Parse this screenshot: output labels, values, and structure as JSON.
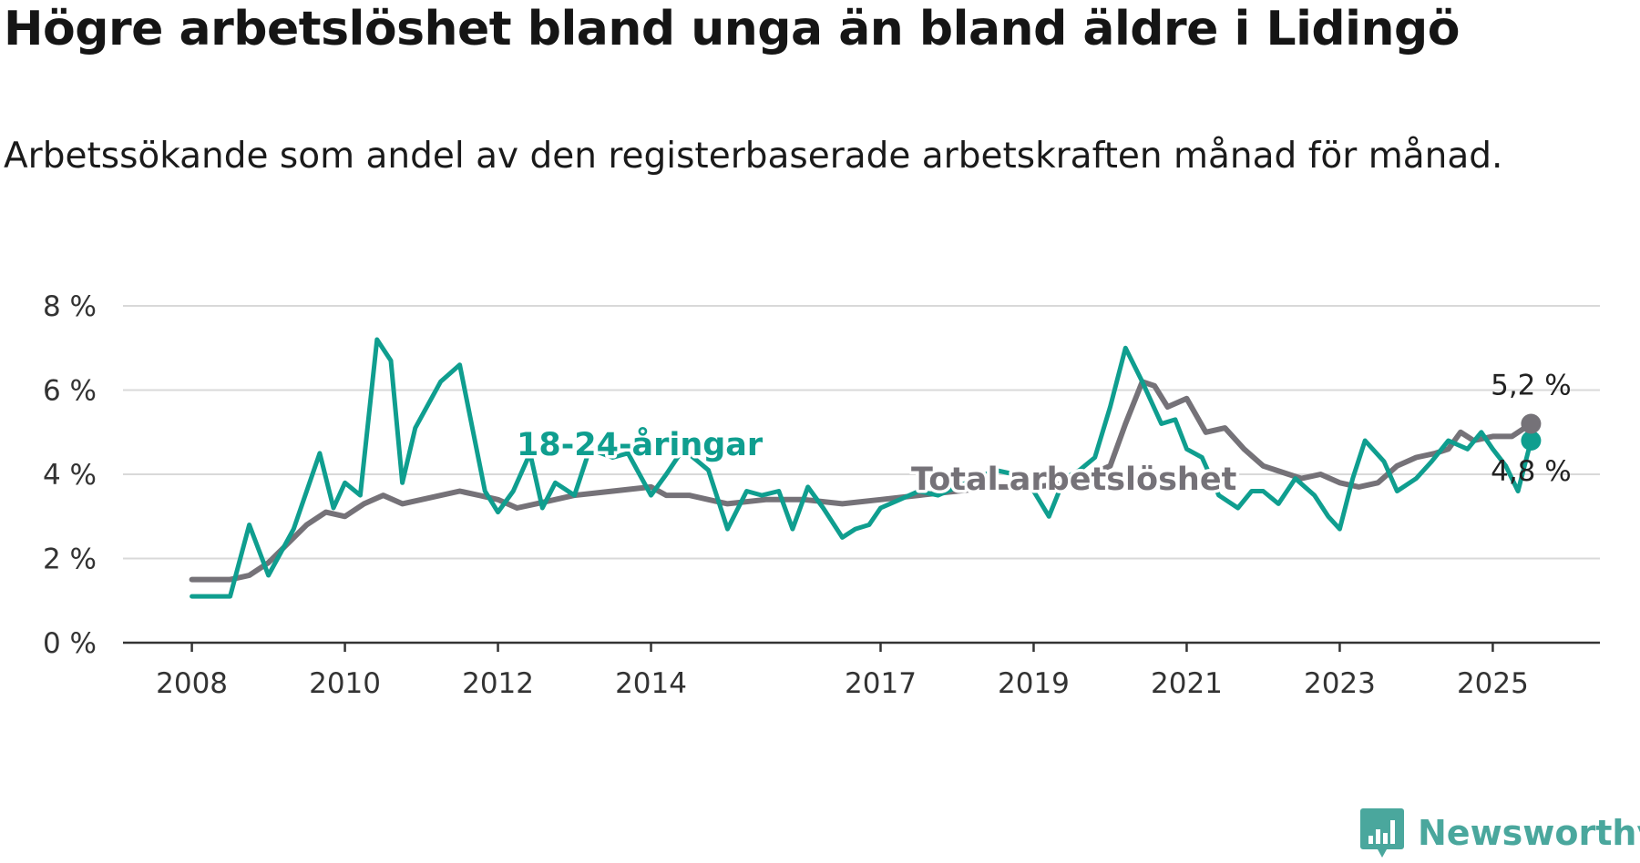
{
  "title": "Högre arbetslöshet bland unga än bland äldre i Lidingö",
  "subtitle": "Arbetssökande som andel av den registerbaserade arbetskraften månad för månad.",
  "brand": {
    "name": "Newsworthy",
    "logo_icon": "newsworthy-bar-chart-icon",
    "color": "#4aa79d"
  },
  "chart_data": {
    "type": "line",
    "ylim": [
      0,
      8
    ],
    "y_ticks": [
      "0 %",
      "2 %",
      "4 %",
      "6 %",
      "8 %"
    ],
    "y_tick_values": [
      0,
      2,
      4,
      6,
      8
    ],
    "x_ticks": [
      "2008",
      "2010",
      "2012",
      "2014",
      "2017",
      "2019",
      "2021",
      "2023",
      "2025"
    ],
    "x_tick_values": [
      2008,
      2010,
      2012,
      2014,
      2017,
      2019,
      2021,
      2023,
      2025
    ],
    "grid": "horizontal",
    "series": [
      {
        "name": "18-24-åringar",
        "color": "#0f9e8f",
        "end_value_label": "4,8 %",
        "x": [
          2008,
          2008.5,
          2008.75,
          2009,
          2009.33,
          2009.67,
          2009.85,
          2010,
          2010.2,
          2010.42,
          2010.6,
          2010.75,
          2010.92,
          2011.25,
          2011.5,
          2011.83,
          2012,
          2012.2,
          2012.42,
          2012.58,
          2012.75,
          2013,
          2013.2,
          2013.5,
          2013.7,
          2014,
          2014.2,
          2014.42,
          2014.75,
          2015,
          2015.25,
          2015.45,
          2015.67,
          2015.85,
          2016.05,
          2016.25,
          2016.5,
          2016.67,
          2016.85,
          2017,
          2017.25,
          2017.5,
          2017.75,
          2018,
          2018.25,
          2018.5,
          2018.75,
          2019,
          2019.2,
          2019.4,
          2019.6,
          2019.8,
          2020,
          2020.2,
          2020.42,
          2020.67,
          2020.85,
          2021,
          2021.2,
          2021.42,
          2021.67,
          2021.85,
          2022,
          2022.2,
          2022.42,
          2022.67,
          2022.85,
          2023,
          2023.17,
          2023.33,
          2023.58,
          2023.75,
          2024,
          2024.2,
          2024.42,
          2024.67,
          2024.85,
          2025,
          2025.17,
          2025.33,
          2025.5
        ],
        "values": [
          1.1,
          1.1,
          2.8,
          1.6,
          2.7,
          4.5,
          3.2,
          3.8,
          3.5,
          7.2,
          6.7,
          3.8,
          5.1,
          6.2,
          6.6,
          3.6,
          3.1,
          3.6,
          4.5,
          3.2,
          3.8,
          3.5,
          4.6,
          4.4,
          4.5,
          3.5,
          4.0,
          4.6,
          4.1,
          2.7,
          3.6,
          3.5,
          3.6,
          2.7,
          3.7,
          3.2,
          2.5,
          2.7,
          2.8,
          3.2,
          3.4,
          3.6,
          3.5,
          3.7,
          3.9,
          4.1,
          4.0,
          3.6,
          3.0,
          3.9,
          4.1,
          4.4,
          5.6,
          7.0,
          6.2,
          5.2,
          5.3,
          4.6,
          4.4,
          3.5,
          3.2,
          3.6,
          3.6,
          3.3,
          3.9,
          3.5,
          3.0,
          2.7,
          3.9,
          4.8,
          4.3,
          3.6,
          3.9,
          4.3,
          4.8,
          4.6,
          5.0,
          4.6,
          4.2,
          3.6,
          4.8
        ]
      },
      {
        "name": "Total arbetslöshet",
        "color": "#757278",
        "end_value_label": "5,2 %",
        "x": [
          2008,
          2008.5,
          2008.75,
          2009,
          2009.5,
          2009.75,
          2010,
          2010.25,
          2010.5,
          2010.75,
          2011,
          2011.5,
          2011.75,
          2012,
          2012.25,
          2012.5,
          2013,
          2013.5,
          2014,
          2014.2,
          2014.5,
          2014.75,
          2015,
          2015.5,
          2016,
          2016.5,
          2017,
          2017.5,
          2018,
          2018.5,
          2019,
          2019.5,
          2020,
          2020.2,
          2020.42,
          2020.58,
          2020.75,
          2021,
          2021.25,
          2021.5,
          2021.75,
          2022,
          2022.5,
          2022.75,
          2023,
          2023.25,
          2023.5,
          2023.75,
          2024,
          2024.25,
          2024.42,
          2024.58,
          2024.75,
          2025,
          2025.25,
          2025.5
        ],
        "values": [
          1.5,
          1.5,
          1.6,
          1.9,
          2.8,
          3.1,
          3.0,
          3.3,
          3.5,
          3.3,
          3.4,
          3.6,
          3.5,
          3.4,
          3.2,
          3.3,
          3.5,
          3.6,
          3.7,
          3.5,
          3.5,
          3.4,
          3.3,
          3.4,
          3.4,
          3.3,
          3.4,
          3.5,
          3.6,
          3.7,
          3.7,
          3.8,
          4.2,
          5.2,
          6.2,
          6.1,
          5.6,
          5.8,
          5.0,
          5.1,
          4.6,
          4.2,
          3.9,
          4.0,
          3.8,
          3.7,
          3.8,
          4.2,
          4.4,
          4.5,
          4.6,
          5.0,
          4.8,
          4.9,
          4.9,
          5.2
        ]
      }
    ]
  }
}
